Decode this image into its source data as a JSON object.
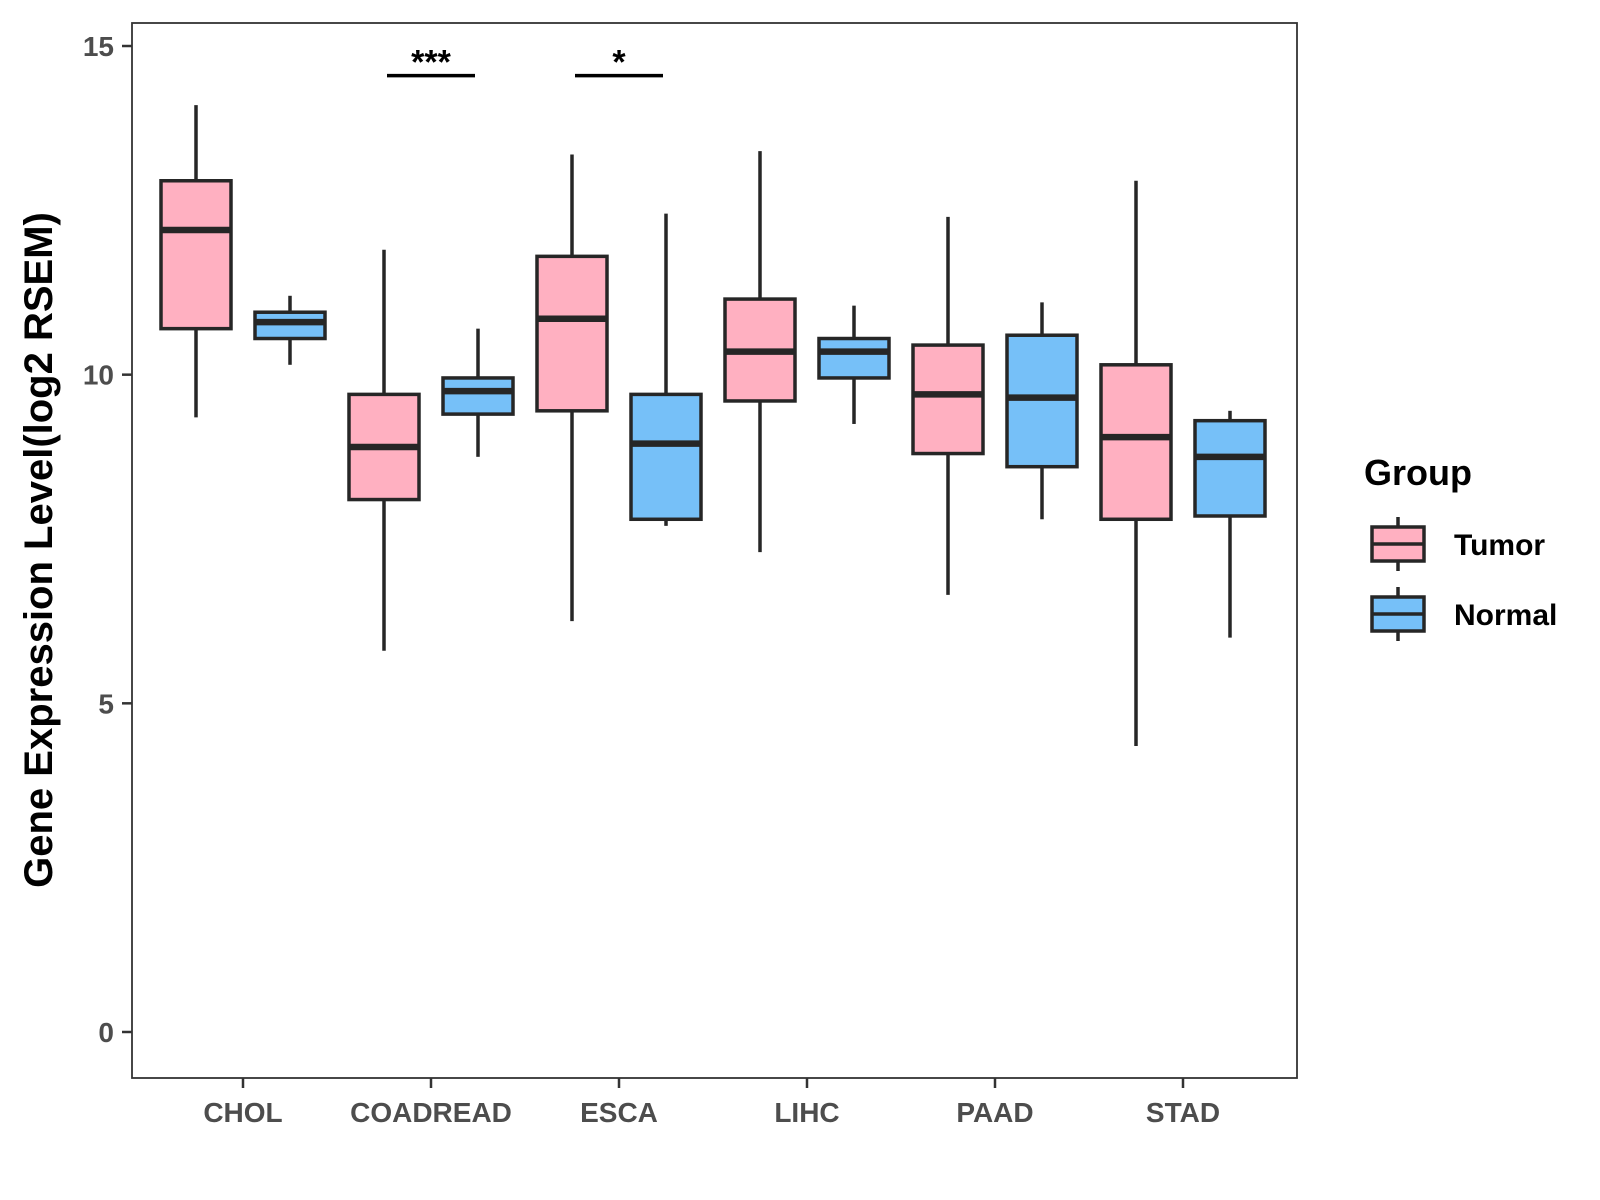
{
  "chart_data": {
    "type": "boxplot",
    "title": "",
    "xlabel": "",
    "ylabel": "Gene Expression Level(log2 RSEM)",
    "ylim": [
      -0.7,
      15.35
    ],
    "yticks": [
      0,
      5,
      10,
      15
    ],
    "yticklabels": [
      "0",
      "5",
      "10",
      "15"
    ],
    "categories": [
      "CHOL",
      "COADREAD",
      "ESCA",
      "LIHC",
      "PAAD",
      "STAD"
    ],
    "legend": {
      "title": "Group",
      "position": "right",
      "entries": [
        "Tumor",
        "Normal"
      ]
    },
    "colors": {
      "Tumor": "#ffb0c1",
      "Normal": "#76c0f8",
      "outline": "#262626"
    },
    "series": [
      {
        "name": "Tumor",
        "boxes": [
          {
            "min": 9.35,
            "q1": 10.7,
            "median": 12.2,
            "q3": 12.95,
            "max": 14.1
          },
          {
            "min": 5.8,
            "q1": 8.1,
            "median": 8.9,
            "q3": 9.7,
            "max": 11.9
          },
          {
            "min": 6.25,
            "q1": 9.45,
            "median": 10.85,
            "q3": 11.8,
            "max": 13.35
          },
          {
            "min": 7.3,
            "q1": 9.6,
            "median": 10.35,
            "q3": 11.15,
            "max": 13.4
          },
          {
            "min": 6.65,
            "q1": 8.8,
            "median": 9.7,
            "q3": 10.45,
            "max": 12.4
          },
          {
            "min": 4.35,
            "q1": 7.8,
            "median": 9.05,
            "q3": 10.15,
            "max": 12.95
          }
        ]
      },
      {
        "name": "Normal",
        "boxes": [
          {
            "min": 10.15,
            "q1": 10.55,
            "median": 10.8,
            "q3": 10.95,
            "max": 11.2
          },
          {
            "min": 8.75,
            "q1": 9.4,
            "median": 9.75,
            "q3": 9.95,
            "max": 10.7
          },
          {
            "min": 7.7,
            "q1": 7.8,
            "median": 8.95,
            "q3": 9.7,
            "max": 12.45
          },
          {
            "min": 9.25,
            "q1": 9.95,
            "median": 10.35,
            "q3": 10.55,
            "max": 11.05
          },
          {
            "min": 7.8,
            "q1": 8.6,
            "median": 9.65,
            "q3": 10.6,
            "max": 11.1
          },
          {
            "min": 6.0,
            "q1": 7.85,
            "median": 8.75,
            "q3": 9.3,
            "max": 9.45
          }
        ]
      }
    ],
    "annotations": [
      {
        "category": "COADREAD",
        "label": "***",
        "y": 14.55
      },
      {
        "category": "ESCA",
        "label": "*",
        "y": 14.55
      }
    ]
  }
}
